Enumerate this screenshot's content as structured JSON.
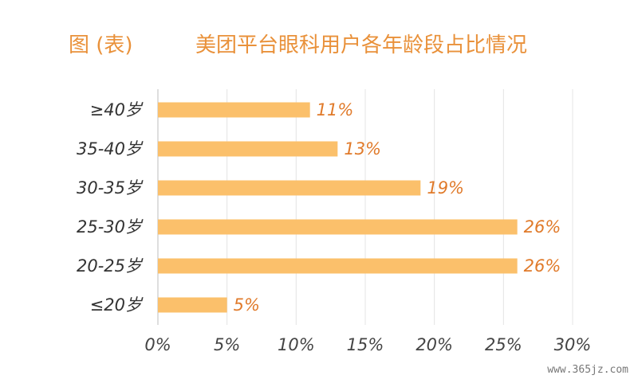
{
  "header": {
    "figure_label": "图 (表)",
    "title": "美团平台眼科用户各年龄段占比情况"
  },
  "chart_data": {
    "type": "bar",
    "orientation": "horizontal",
    "categories": [
      "≥40岁",
      "35-40岁",
      "30-35岁",
      "25-30岁",
      "20-25岁",
      "≤20岁"
    ],
    "values": [
      11,
      13,
      19,
      26,
      26,
      5
    ],
    "data_labels": [
      "11%",
      "13%",
      "19%",
      "26%",
      "26%",
      "5%"
    ],
    "x_ticks": [
      "0%",
      "5%",
      "10%",
      "15%",
      "20%",
      "25%",
      "30%"
    ],
    "xlim": [
      0,
      30
    ],
    "title": "美团平台眼科用户各年龄段占比情况",
    "grid": true,
    "bar_color": "#FBC06B",
    "label_color": "#E07A2A"
  },
  "watermark": "www.365jz.com"
}
